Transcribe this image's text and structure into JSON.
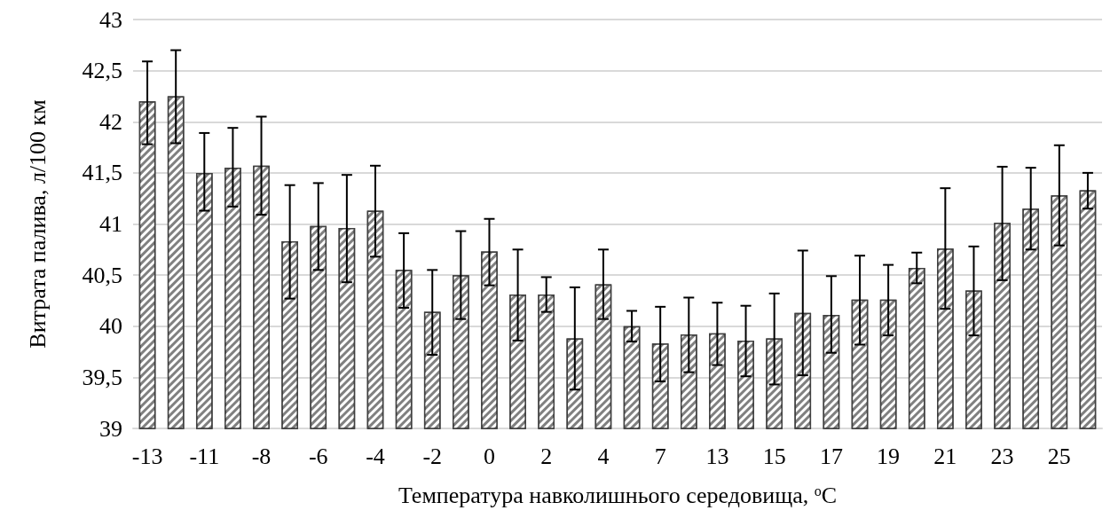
{
  "chart_data": {
    "type": "bar",
    "xlabel": "Температура навколишнього середовища, $^{o}$C",
    "ylabel": "Витрата палива, л/100 км",
    "categories": [
      "-13",
      null,
      "-11",
      null,
      "-8",
      null,
      "-6",
      null,
      "-4",
      null,
      "-2",
      null,
      "0",
      null,
      "2",
      null,
      "4",
      null,
      "7",
      null,
      "13",
      null,
      "15",
      null,
      "17",
      null,
      "19",
      null,
      "21",
      null,
      "23",
      null,
      "25",
      null
    ],
    "values": [
      42.2,
      42.25,
      41.5,
      41.55,
      41.57,
      40.83,
      40.98,
      40.96,
      41.13,
      40.55,
      40.14,
      40.5,
      40.73,
      40.31,
      40.31,
      39.88,
      40.41,
      40.0,
      39.83,
      39.92,
      39.93,
      39.86,
      39.88,
      40.13,
      40.11,
      40.26,
      40.26,
      40.57,
      40.76,
      40.35,
      41.01,
      41.15,
      41.28,
      41.33
    ],
    "errors": [
      [
        41.78,
        42.59
      ],
      [
        41.79,
        42.7
      ],
      [
        41.13,
        41.89
      ],
      [
        41.17,
        41.94
      ],
      [
        41.09,
        42.05
      ],
      [
        40.27,
        41.38
      ],
      [
        40.55,
        41.4
      ],
      [
        40.43,
        41.48
      ],
      [
        40.68,
        41.57
      ],
      [
        40.18,
        40.91
      ],
      [
        39.72,
        40.55
      ],
      [
        40.07,
        40.93
      ],
      [
        40.4,
        41.05
      ],
      [
        39.86,
        40.75
      ],
      [
        40.14,
        40.48
      ],
      [
        39.38,
        40.38
      ],
      [
        40.07,
        40.75
      ],
      [
        39.85,
        40.15
      ],
      [
        39.46,
        40.19
      ],
      [
        39.55,
        40.28
      ],
      [
        39.62,
        40.23
      ],
      [
        39.51,
        40.2
      ],
      [
        39.43,
        40.32
      ],
      [
        39.52,
        40.74
      ],
      [
        39.74,
        40.49
      ],
      [
        39.82,
        40.69
      ],
      [
        39.91,
        40.6
      ],
      [
        40.42,
        40.72
      ],
      [
        40.17,
        41.35
      ],
      [
        39.91,
        40.78
      ],
      [
        40.45,
        41.56
      ],
      [
        40.75,
        41.55
      ],
      [
        40.79,
        41.77
      ],
      [
        41.15,
        41.5
      ]
    ],
    "color": "#808080",
    "ylim": [
      39,
      43
    ],
    "yticks": [
      39,
      {
        "value": 39.5,
        "label": "39,5"
      },
      40,
      {
        "value": 40.5,
        "label": "40,5"
      },
      41,
      {
        "value": 41.5,
        "label": "41,5"
      },
      42,
      {
        "value": 42.5,
        "label": "42,5"
      },
      43
    ],
    "grid": "y"
  }
}
